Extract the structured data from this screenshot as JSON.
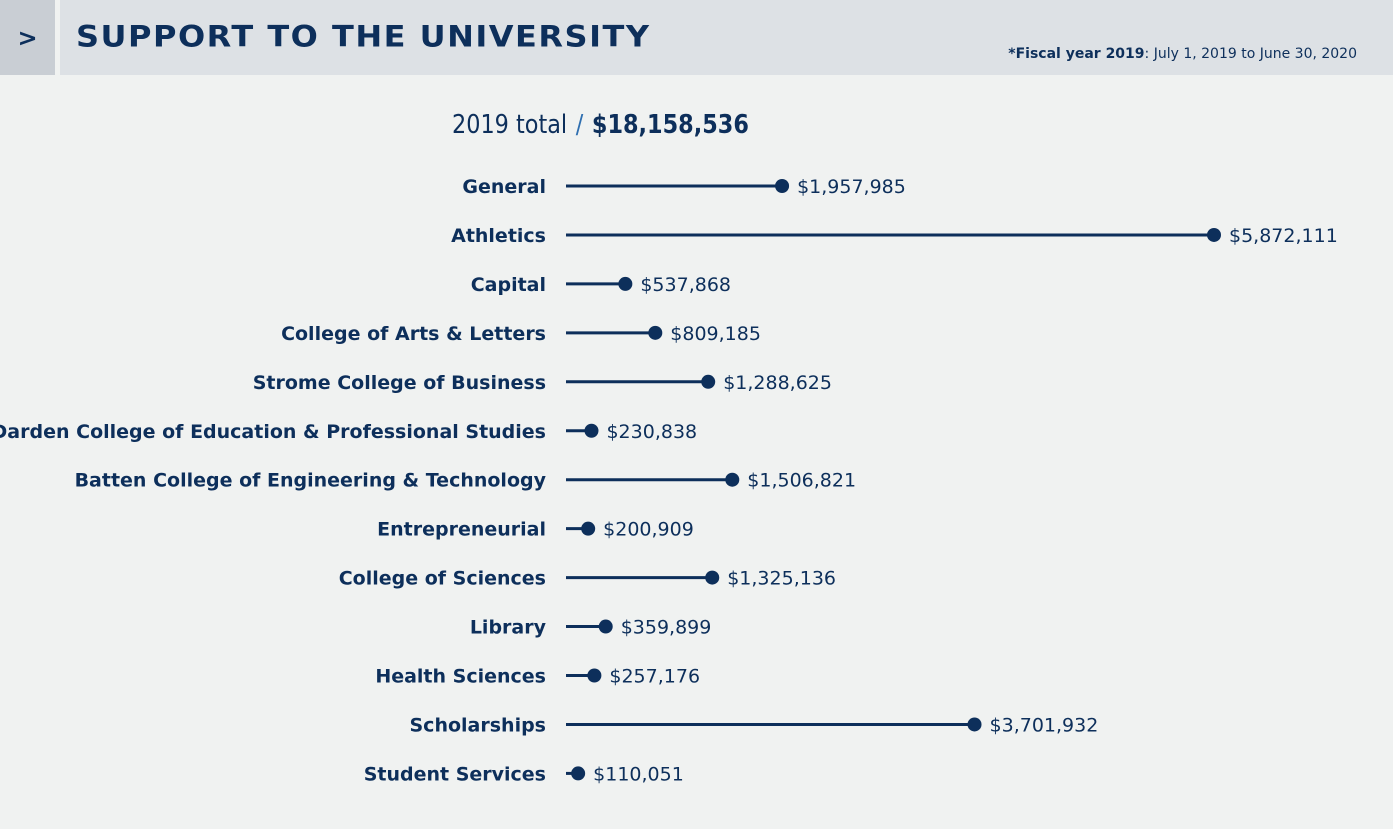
{
  "header": {
    "chevron": ">",
    "title": "SUPPORT TO THE UNIVERSITY",
    "fiscal_bold": "*Fiscal year 2019",
    "fiscal_rest": ": July 1, 2019 to June 30, 2020"
  },
  "total": {
    "label": "2019 total",
    "slash": "/",
    "amount": "$18,158,536"
  },
  "colors": {
    "navy": "#0d2f5b",
    "background": "#f0f2f1",
    "header_bg": "#dde1e5"
  },
  "chart_data": {
    "type": "lollipop",
    "categories": [
      "General",
      "Athletics",
      "Capital",
      "College of Arts & Letters",
      "Strome College of Business",
      "Darden College of Education & Professional Studies",
      "Batten College of Engineering & Technology",
      "Entrepreneurial",
      "College of Sciences",
      "Library",
      "Health Sciences",
      "Scholarships",
      "Student Services"
    ],
    "values": [
      1957985,
      5872111,
      537868,
      809185,
      1288625,
      230838,
      1506821,
      200909,
      1325136,
      359899,
      257176,
      3701932,
      110051
    ],
    "value_labels": [
      "$1,957,985",
      "$5,872,111",
      "$537,868",
      "$809,185",
      "$1,288,625",
      "$230,838",
      "$1,506,821",
      "$200,909",
      "$1,325,136",
      "$359,899",
      "$257,176",
      "$3,701,932",
      "$110,051"
    ]
  }
}
